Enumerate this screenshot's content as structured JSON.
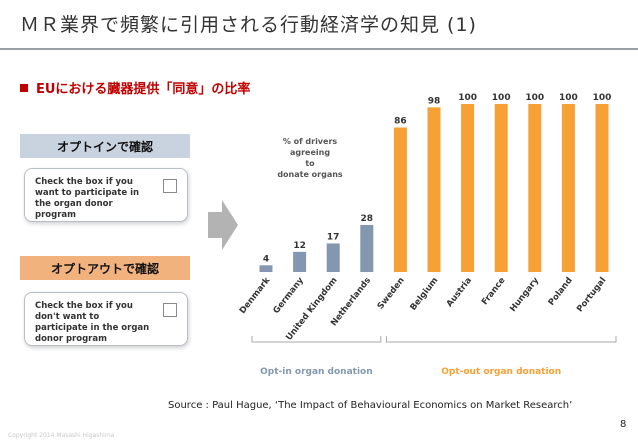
{
  "slide": {
    "title": "ＭＲ業界で頻繁に引用される行動経済学の知見 (1)",
    "subtitle": "EUにおける臓器提供「同意」の比率",
    "opt_in_label": "オプトインで確認",
    "opt_out_label": "オプトアウトで確認",
    "opt_in_card_text": "Check the box if you want to participate in the organ donor program",
    "opt_out_card_text": "Check the box if you don't want to participate in the organ donor program",
    "source": "Source : Paul Hague, ‘The Impact of Behavioural Economics on Market Research’",
    "page_number": "8",
    "copyright": "Copyright 2014 Masashi Higashima"
  },
  "chart_data": {
    "type": "bar",
    "annotation": "% of drivers agreeing to donate organs",
    "categories": [
      "Denmark",
      "Germany",
      "United Kingdom",
      "Netherlands",
      "Sweden",
      "Belgium",
      "Austria",
      "France",
      "Hungary",
      "Poland",
      "Portugal"
    ],
    "values": [
      4,
      12,
      17,
      28,
      86,
      98,
      100,
      100,
      100,
      100,
      100
    ],
    "groups": [
      {
        "label": "Opt-in organ donation",
        "start": 0,
        "end": 3,
        "color": "#8497b0"
      },
      {
        "label": "Opt-out organ donation",
        "start": 4,
        "end": 10,
        "color": "#f7a035"
      }
    ],
    "ylim": [
      0,
      100
    ]
  }
}
